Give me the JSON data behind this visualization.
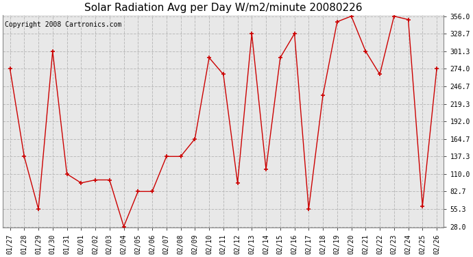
{
  "title": "Solar Radiation Avg per Day W/m2/minute 20080226",
  "copyright": "Copyright 2008 Cartronics.com",
  "dates": [
    "01/27",
    "01/28",
    "01/29",
    "01/30",
    "01/31",
    "02/01",
    "02/02",
    "02/03",
    "02/04",
    "02/05",
    "02/06",
    "02/07",
    "02/08",
    "02/09",
    "02/10",
    "02/11",
    "02/12",
    "02/13",
    "02/14",
    "02/15",
    "02/16",
    "02/17",
    "02/18",
    "02/19",
    "02/20",
    "02/21",
    "02/22",
    "02/23",
    "02/24",
    "02/25",
    "02/26"
  ],
  "values": [
    274.0,
    137.3,
    55.3,
    301.3,
    110.0,
    96.0,
    100.7,
    100.7,
    28.0,
    82.7,
    82.7,
    137.3,
    137.3,
    164.7,
    291.3,
    265.3,
    96.0,
    328.7,
    117.3,
    291.3,
    328.7,
    55.3,
    232.7,
    347.3,
    356.0,
    301.3,
    265.3,
    356.0,
    350.7,
    60.0,
    274.0
  ],
  "line_color": "#cc0000",
  "marker": "+",
  "marker_size": 5,
  "marker_color": "#cc0000",
  "background_color": "#ffffff",
  "plot_bg_color": "#e8e8e8",
  "grid_color": "#bbbbbb",
  "ytick_labels": [
    "28.0",
    "55.3",
    "82.7",
    "110.0",
    "137.3",
    "164.7",
    "192.0",
    "219.3",
    "246.7",
    "274.0",
    "301.3",
    "328.7",
    "356.0"
  ],
  "ytick_values": [
    28.0,
    55.3,
    82.7,
    110.0,
    137.3,
    164.7,
    192.0,
    219.3,
    246.7,
    274.0,
    301.3,
    328.7,
    356.0
  ],
  "ylim_min": 28.0,
  "ylim_max": 356.0,
  "title_fontsize": 11,
  "copyright_fontsize": 7,
  "tick_fontsize": 7
}
